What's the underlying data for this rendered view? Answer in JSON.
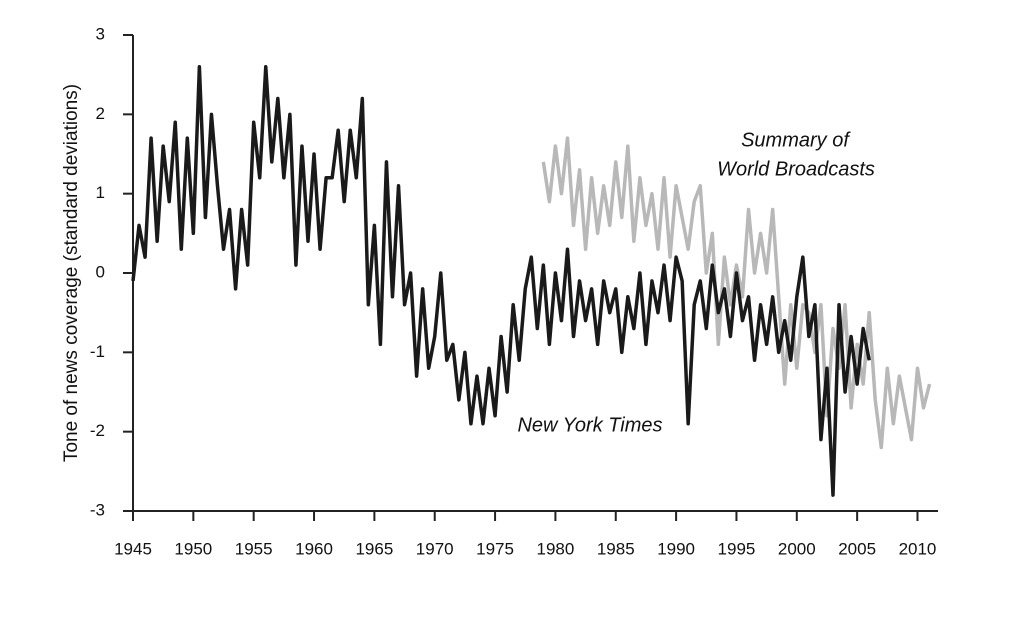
{
  "chart_data": {
    "type": "line",
    "y_label": "Tone of news coverage (standard deviations)",
    "annotations": [
      {
        "text": "Summary of"
      },
      {
        "text": "World Broadcasts"
      },
      {
        "text": "New York Times"
      }
    ],
    "xlim": [
      1945,
      2011.7
    ],
    "ylim": [
      -3,
      3
    ],
    "xticks": [
      1945,
      1950,
      1955,
      1960,
      1965,
      1970,
      1975,
      1980,
      1985,
      1990,
      1995,
      2000,
      2005,
      2010
    ],
    "yticks": [
      -3,
      -2,
      -1,
      0,
      1,
      2,
      3
    ],
    "grid": false,
    "series": [
      {
        "color": "#b8b8b8",
        "x": [
          1979,
          1979.5,
          1980,
          1980.5,
          1981,
          1981.5,
          1982,
          1982.5,
          1983,
          1983.5,
          1984,
          1984.5,
          1985,
          1985.5,
          1986,
          1986.5,
          1987,
          1987.5,
          1988,
          1988.5,
          1989,
          1989.5,
          1990,
          1990.5,
          1991,
          1991.5,
          1992,
          1992.5,
          1993,
          1993.5,
          1994,
          1994.5,
          1995,
          1995.5,
          1996,
          1996.5,
          1997,
          1997.5,
          1998,
          1998.5,
          1999,
          1999.5,
          2000,
          2000.5,
          2001,
          2001.5,
          2002,
          2002.5,
          2003,
          2003.5,
          2004,
          2004.5,
          2005,
          2005.5,
          2006,
          2006.5,
          2007,
          2007.5,
          2008,
          2008.5,
          2009,
          2009.5,
          2010,
          2010.5,
          2011
        ],
        "values": [
          1.4,
          0.9,
          1.6,
          1.0,
          1.7,
          0.6,
          1.3,
          0.3,
          1.2,
          0.5,
          1.1,
          0.6,
          1.4,
          0.7,
          1.6,
          0.4,
          1.2,
          0.6,
          1.0,
          0.3,
          1.2,
          0.2,
          1.1,
          0.7,
          0.3,
          0.9,
          1.1,
          0.0,
          0.5,
          -0.9,
          0.2,
          -0.4,
          0.1,
          -0.3,
          0.8,
          0.0,
          0.5,
          0.0,
          0.8,
          -0.3,
          -1.4,
          -0.4,
          -1.2,
          -0.4,
          -0.5,
          -1.0,
          -0.4,
          -1.8,
          -0.7,
          -1.2,
          -0.4,
          -1.7,
          -0.9,
          -1.4,
          -0.5,
          -1.6,
          -2.2,
          -1.2,
          -1.9,
          -1.3,
          -1.7,
          -2.1,
          -1.2,
          -1.7,
          -1.4
        ]
      },
      {
        "color": "#1a1a1a",
        "x": [
          1945,
          1945.5,
          1946,
          1946.5,
          1947,
          1947.5,
          1948,
          1948.5,
          1949,
          1949.5,
          1950,
          1950.5,
          1951,
          1951.5,
          1952,
          1952.5,
          1953,
          1953.5,
          1954,
          1954.5,
          1955,
          1955.5,
          1956,
          1956.5,
          1957,
          1957.5,
          1958,
          1958.5,
          1959,
          1959.5,
          1960,
          1960.5,
          1961,
          1961.5,
          1962,
          1962.5,
          1963,
          1963.5,
          1964,
          1964.5,
          1965,
          1965.5,
          1966,
          1966.5,
          1967,
          1967.5,
          1968,
          1968.5,
          1969,
          1969.5,
          1970,
          1970.5,
          1971,
          1971.5,
          1972,
          1972.5,
          1973,
          1973.5,
          1974,
          1974.5,
          1975,
          1975.5,
          1976,
          1976.5,
          1977,
          1977.5,
          1978,
          1978.5,
          1979,
          1979.5,
          1980,
          1980.5,
          1981,
          1981.5,
          1982,
          1982.5,
          1983,
          1983.5,
          1984,
          1984.5,
          1985,
          1985.5,
          1986,
          1986.5,
          1987,
          1987.5,
          1988,
          1988.5,
          1989,
          1989.5,
          1990,
          1990.5,
          1991,
          1991.5,
          1992,
          1992.5,
          1993,
          1993.5,
          1994,
          1994.5,
          1995,
          1995.5,
          1996,
          1996.5,
          1997,
          1997.5,
          1998,
          1998.5,
          1999,
          1999.5,
          2000,
          2000.5,
          2001,
          2001.5,
          2002,
          2002.5,
          2003,
          2003.5,
          2004,
          2004.5,
          2005,
          2005.5,
          2006
        ],
        "values": [
          -0.1,
          0.6,
          0.2,
          1.7,
          0.4,
          1.6,
          0.9,
          1.9,
          0.3,
          1.7,
          0.5,
          2.6,
          0.7,
          2.0,
          1.1,
          0.3,
          0.8,
          -0.2,
          0.8,
          0.1,
          1.9,
          1.2,
          2.6,
          1.4,
          2.2,
          1.2,
          2.0,
          0.1,
          1.6,
          0.4,
          1.5,
          0.3,
          1.2,
          1.2,
          1.8,
          0.9,
          1.8,
          1.2,
          2.2,
          -0.4,
          0.6,
          -0.9,
          1.4,
          -0.3,
          1.1,
          -0.4,
          0.0,
          -1.3,
          -0.2,
          -1.2,
          -0.8,
          0.0,
          -1.1,
          -0.9,
          -1.6,
          -1.0,
          -1.9,
          -1.3,
          -1.9,
          -1.2,
          -1.8,
          -0.8,
          -1.5,
          -0.4,
          -1.1,
          -0.2,
          0.2,
          -0.7,
          0.1,
          -0.9,
          0.0,
          -0.6,
          0.3,
          -0.8,
          -0.1,
          -0.6,
          -0.2,
          -0.9,
          -0.1,
          -0.5,
          -0.2,
          -1.0,
          -0.3,
          -0.7,
          0.0,
          -0.9,
          -0.1,
          -0.5,
          0.1,
          -0.6,
          0.2,
          -0.1,
          -1.9,
          -0.4,
          -0.1,
          -0.7,
          0.1,
          -0.5,
          -0.2,
          -0.8,
          0.0,
          -0.6,
          -0.3,
          -1.1,
          -0.4,
          -0.9,
          -0.3,
          -1.0,
          -0.6,
          -1.1,
          -0.3,
          0.2,
          -0.8,
          -0.4,
          -2.1,
          -1.2,
          -2.8,
          -0.4,
          -1.5,
          -0.8,
          -1.4,
          -0.7,
          -1.1
        ]
      }
    ]
  }
}
